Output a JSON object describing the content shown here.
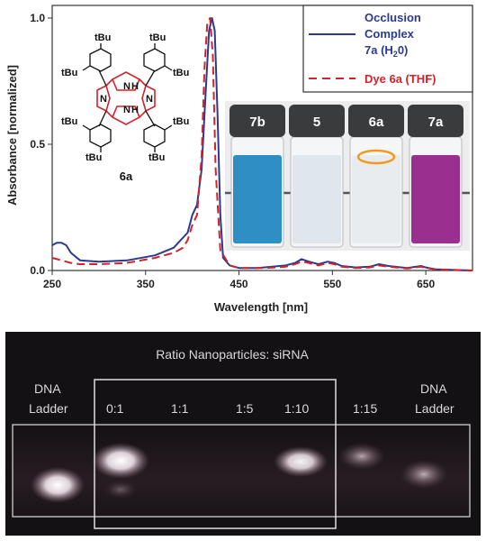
{
  "chart_data": {
    "type": "line",
    "xlabel": "Wavelength [nm]",
    "ylabel": "Absorbance [normalized]",
    "xlim": [
      250,
      700
    ],
    "ylim": [
      0,
      1.05
    ],
    "xticks": [
      "250",
      "350",
      "450",
      "550",
      "650"
    ],
    "yticks": [
      "0.0",
      "0.5",
      "1.0"
    ],
    "legend_position": "top-right",
    "legend": [
      {
        "text": "Occlusion Complex 7a (H20)",
        "lines": [
          "Occlusion",
          "Complex",
          "7a (H",
          "2",
          "0)"
        ]
      },
      {
        "text": "Dye 6a (THF)"
      }
    ],
    "series": [
      {
        "name": "Occlusion Complex 7a (H20)",
        "color": "#2b3990",
        "dash": "solid",
        "x": [
          250,
          255,
          260,
          265,
          270,
          280,
          300,
          330,
          360,
          380,
          395,
          400,
          405,
          410,
          415,
          418,
          421,
          424,
          427,
          430,
          433,
          440,
          450,
          470,
          500,
          510,
          517,
          525,
          535,
          545,
          552,
          560,
          575,
          590,
          600,
          610,
          630,
          645,
          650,
          660,
          680,
          700
        ],
        "y": [
          0.1,
          0.11,
          0.11,
          0.1,
          0.07,
          0.04,
          0.035,
          0.04,
          0.06,
          0.09,
          0.15,
          0.22,
          0.26,
          0.4,
          0.75,
          0.95,
          1.0,
          0.95,
          0.62,
          0.22,
          0.05,
          0.02,
          0.01,
          0.01,
          0.02,
          0.03,
          0.045,
          0.035,
          0.025,
          0.035,
          0.03,
          0.018,
          0.012,
          0.015,
          0.025,
          0.018,
          0.01,
          0.018,
          0.012,
          0.005,
          0.002,
          0.0
        ]
      },
      {
        "name": "Dye 6a (THF)",
        "color": "#d1232a",
        "dash": "dashed",
        "x": [
          250,
          255,
          260,
          265,
          270,
          280,
          300,
          330,
          360,
          380,
          390,
          395,
          400,
          405,
          410,
          413,
          416,
          419,
          422,
          425,
          430,
          440,
          450,
          480,
          500,
          510,
          517,
          525,
          535,
          545,
          552,
          560,
          575,
          590,
          600,
          610,
          630,
          645,
          650,
          660,
          680,
          700
        ],
        "y": [
          0.05,
          0.045,
          0.04,
          0.035,
          0.03,
          0.025,
          0.025,
          0.03,
          0.05,
          0.07,
          0.09,
          0.12,
          0.18,
          0.22,
          0.45,
          0.8,
          0.98,
          1.0,
          0.85,
          0.4,
          0.08,
          0.02,
          0.01,
          0.01,
          0.015,
          0.025,
          0.035,
          0.03,
          0.02,
          0.03,
          0.025,
          0.015,
          0.01,
          0.012,
          0.02,
          0.015,
          0.008,
          0.015,
          0.01,
          0.005,
          0.002,
          0.0
        ]
      }
    ]
  },
  "molecule": {
    "name": "6a",
    "substituents": [
      "tBu",
      "tBu",
      "tBu",
      "tBu",
      "tBu",
      "tBu",
      "tBu",
      "tBu"
    ],
    "nh_labels": [
      "N",
      "H",
      "N",
      "H",
      "N",
      "N"
    ]
  },
  "vials": [
    {
      "label": "7b",
      "color": "#2f8fc4"
    },
    {
      "label": "5",
      "color": "#dfe6ec"
    },
    {
      "label": "6a",
      "color": "#e8ecef"
    },
    {
      "label": "7a",
      "color": "#9b2f8f"
    }
  ],
  "gel": {
    "title": "Ratio Nanoparticles: siRNA",
    "left_ladder": [
      "DNA",
      "Ladder"
    ],
    "right_ladder": [
      "DNA",
      "Ladder"
    ],
    "lanes": [
      "0:1",
      "1:1",
      "1:5",
      "1:10",
      "1:15"
    ]
  }
}
